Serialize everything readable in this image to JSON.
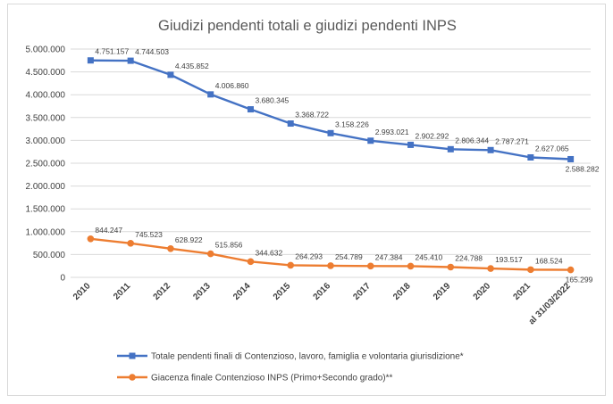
{
  "chart_data": {
    "type": "line",
    "title": "Giudizi pendenti totali e giudizi pendenti INPS",
    "xlabel": "",
    "ylabel": "",
    "ylim": [
      0,
      5000000
    ],
    "yticks": [
      "0",
      "500.000",
      "1.000.000",
      "1.500.000",
      "2.000.000",
      "2.500.000",
      "3.000.000",
      "3.500.000",
      "4.000.000",
      "4.500.000",
      "5.000.000"
    ],
    "categories": [
      "2010",
      "2011",
      "2012",
      "2013",
      "2014",
      "2015",
      "2016",
      "2017",
      "2018",
      "2019",
      "2020",
      "2021",
      "al 31/03/2022"
    ],
    "grid": true,
    "legend_position": "bottom",
    "series": [
      {
        "name": "Totale pendenti finali di Contenzioso, lavoro, famiglia e volontaria giurisdizione*",
        "color": "#4472c4",
        "marker": "square",
        "values": [
          4751157,
          4744503,
          4435852,
          4006860,
          3680345,
          3368722,
          3158226,
          2993021,
          2902292,
          2806344,
          2787271,
          2627065,
          2588282
        ],
        "labels": [
          "4.751.157",
          "4.744.503",
          "4.435.852",
          "4.006.860",
          "3.680.345",
          "3.368.722",
          "3.158.226",
          "2.993.021",
          "2.902.292",
          "2.806.344",
          "2.787.271",
          "2.627.065",
          "2.588.282"
        ]
      },
      {
        "name": "Giacenza finale Contenzioso INPS (Primo+Secondo grado)**",
        "color": "#ed7d31",
        "marker": "circle",
        "values": [
          844247,
          745523,
          628922,
          515856,
          344632,
          264293,
          254789,
          247384,
          245410,
          224788,
          193517,
          168524,
          165299
        ],
        "labels": [
          "844.247",
          "745.523",
          "628.922",
          "515.856",
          "344.632",
          "264.293",
          "254.789",
          "247.384",
          "245.410",
          "224.788",
          "193.517",
          "168.524",
          "165.299"
        ]
      }
    ]
  }
}
